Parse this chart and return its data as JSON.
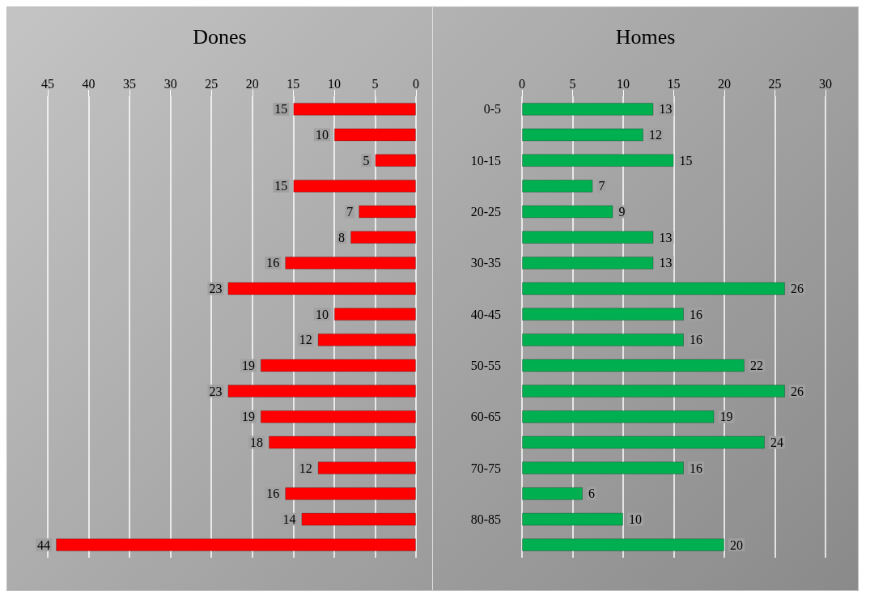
{
  "chart_data": [
    {
      "type": "bar",
      "title": "Dones",
      "orientation": "horizontal",
      "categories": [
        null,
        null,
        null,
        null,
        null,
        null,
        null,
        null,
        null,
        null,
        null,
        null,
        null,
        null,
        null,
        null,
        null,
        null
      ],
      "values": [
        15,
        10,
        5,
        15,
        7,
        8,
        16,
        23,
        10,
        12,
        19,
        23,
        19,
        18,
        12,
        16,
        14,
        44
      ],
      "color": "#ff0000",
      "xlim": [
        45,
        0
      ],
      "xticks": [
        45,
        40,
        35,
        30,
        25,
        20,
        15,
        10,
        5,
        0
      ],
      "grid": "x",
      "data_labels": true
    },
    {
      "type": "bar",
      "title": "Homes",
      "orientation": "horizontal",
      "categories": [
        "0-5",
        null,
        "10-15",
        null,
        "20-25",
        null,
        "30-35",
        null,
        "40-45",
        null,
        "50-55",
        null,
        "60-65",
        null,
        "70-75",
        null,
        "80-85",
        null
      ],
      "values": [
        13,
        12,
        15,
        7,
        9,
        13,
        13,
        26,
        16,
        16,
        22,
        26,
        19,
        24,
        16,
        6,
        10,
        20
      ],
      "color": "#00b050",
      "xlim": [
        0,
        30
      ],
      "xticks": [
        0,
        5,
        10,
        15,
        20,
        25,
        30
      ],
      "grid": "x",
      "data_labels": true
    }
  ]
}
